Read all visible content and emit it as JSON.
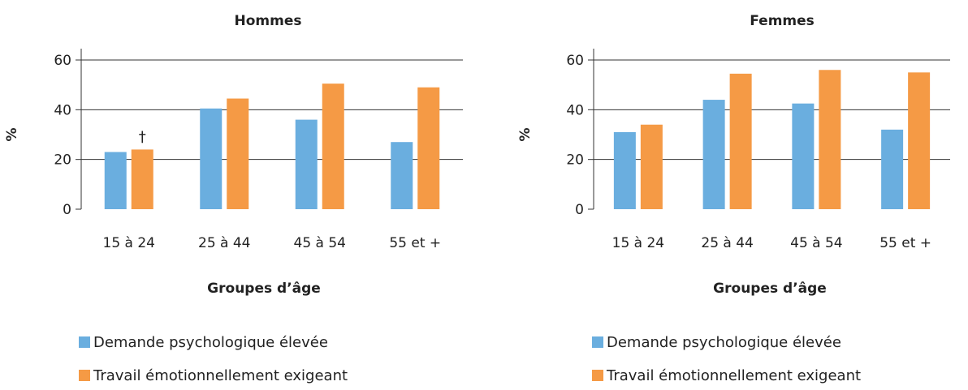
{
  "chart_data": [
    {
      "type": "bar",
      "title": "Hommes",
      "xlabel": "Groupes d’âge",
      "ylabel": "%",
      "categories": [
        "15 à 24",
        "25 à 44",
        "45 à 54",
        "55 et +"
      ],
      "series": [
        {
          "name": "Demande psychologique élevée",
          "values": [
            23,
            40.5,
            36,
            27
          ],
          "color": "#6aaedf"
        },
        {
          "name": "Travail émotionnellement exigeant",
          "values": [
            24,
            44.5,
            50.5,
            49
          ],
          "color": "#f59a45"
        }
      ],
      "ylim": [
        0,
        60
      ],
      "yticks": [
        "0",
        "20",
        "40",
        "60"
      ],
      "grid": true,
      "legend": "bottom",
      "annotations": [
        {
          "category": "15 à 24",
          "series": 1,
          "text": "†"
        }
      ]
    },
    {
      "type": "bar",
      "title": "Femmes",
      "xlabel": "Groupes d’âge",
      "ylabel": "%",
      "categories": [
        "15 à 24",
        "25 à 44",
        "45 à 54",
        "55 et +"
      ],
      "series": [
        {
          "name": "Demande psychologique élevée",
          "values": [
            31,
            44,
            42.5,
            32
          ],
          "color": "#6aaedf"
        },
        {
          "name": "Travail émotionnellement exigeant",
          "values": [
            34,
            54.5,
            56,
            55
          ],
          "color": "#f59a45"
        }
      ],
      "ylim": [
        0,
        60
      ],
      "yticks": [
        "0",
        "20",
        "40",
        "60"
      ],
      "grid": true,
      "legend": "bottom",
      "annotations": []
    }
  ]
}
